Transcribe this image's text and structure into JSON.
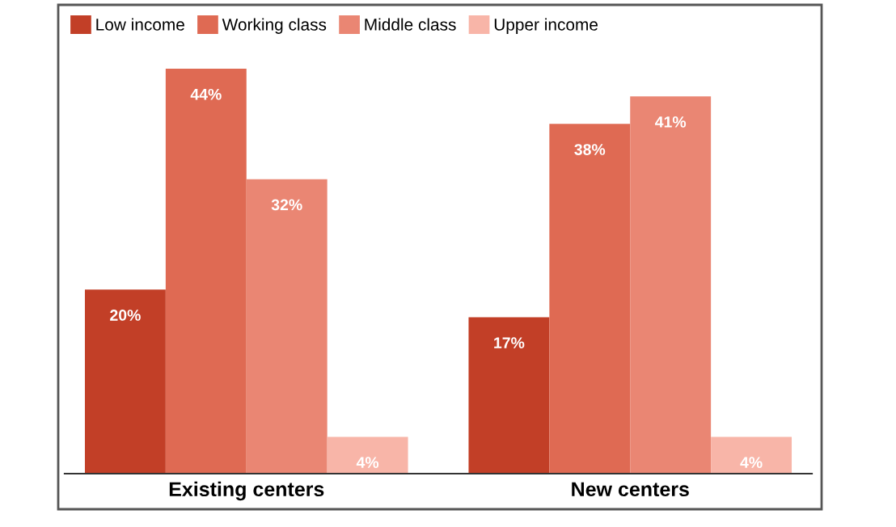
{
  "chart_data": {
    "type": "bar",
    "categories": [
      "Existing centers",
      "New centers"
    ],
    "series": [
      {
        "name": "Low income",
        "color": "#c23f27",
        "values": [
          20,
          17
        ],
        "value_labels": [
          "20%",
          "17%"
        ]
      },
      {
        "name": "Working class",
        "color": "#df6a53",
        "values": [
          44,
          38
        ],
        "value_labels": [
          "44%",
          "38%"
        ]
      },
      {
        "name": "Middle class",
        "color": "#ea8673",
        "values": [
          32,
          41
        ],
        "value_labels": [
          "32%",
          "41%"
        ]
      },
      {
        "name": "Upper income",
        "color": "#f8b5a8",
        "values": [
          4,
          4
        ],
        "value_labels": [
          "4%",
          "4%"
        ]
      }
    ],
    "grid": false,
    "legend": "top left",
    "tick_labels": "x"
  }
}
